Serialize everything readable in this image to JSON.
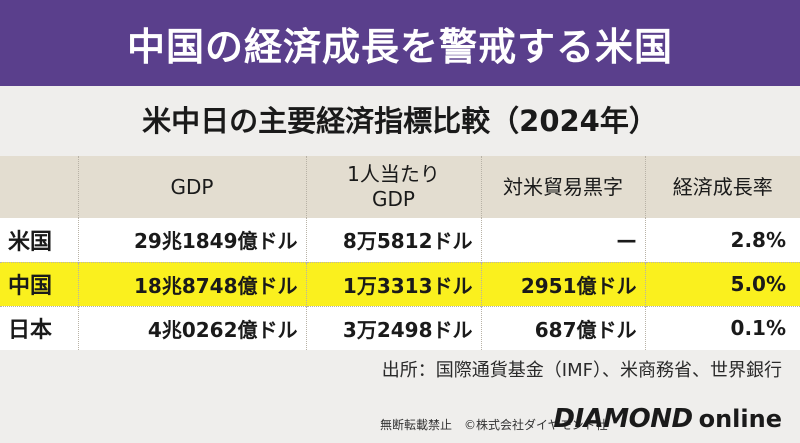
{
  "banner": {
    "title": "中国の経済成長を警戒する米国"
  },
  "subtitle": "米中日の主要経済指標比較（2024年）",
  "table": {
    "headers": [
      "",
      "GDP",
      "1人当たり\nGDP",
      "対米貿易黒字",
      "経済成長率"
    ],
    "rows": [
      {
        "country": "米国",
        "gdp": "29兆1849億ドル",
        "gdp_per_capita": "8万5812ドル",
        "trade_surplus": "—",
        "growth": "2.8%",
        "highlight": false
      },
      {
        "country": "中国",
        "gdp": "18兆8748億ドル",
        "gdp_per_capita": "1万3313ドル",
        "trade_surplus": "2951億ドル",
        "growth": "5.0%",
        "highlight": true
      },
      {
        "country": "日本",
        "gdp": "4兆0262億ドル",
        "gdp_per_capita": "3万2498ドル",
        "trade_surplus": "687億ドル",
        "growth": "0.1%",
        "highlight": false
      }
    ]
  },
  "source": "出所：国際通貨基金（IMF）、米商務省、世界銀行",
  "footer": {
    "copyright": "無断転載禁止　©株式会社ダイヤモンド社",
    "logo_brand": "DIAMOND",
    "logo_suffix": "online"
  },
  "colors": {
    "banner": "#5a3f8c",
    "header_row": "#e3ddd0",
    "highlight_row": "#faf01e",
    "background": "#efeeec"
  }
}
